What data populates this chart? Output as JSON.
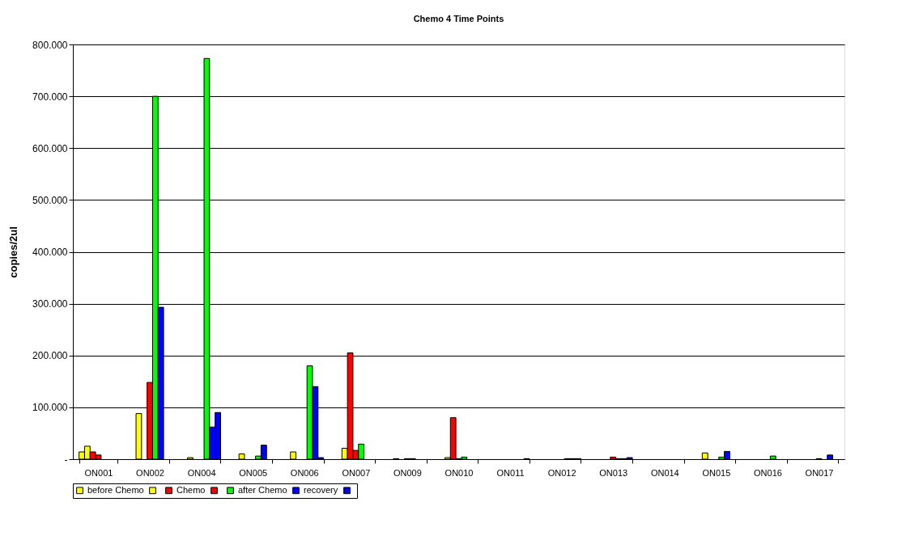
{
  "chart_data": {
    "type": "bar",
    "title": "Chemo 4 Time Points",
    "ylabel": "copies/2ul",
    "categories": [
      "ON001",
      "ON002",
      "ON004",
      "ON005",
      "ON006",
      "ON007",
      "ON009",
      "ON010",
      "ON011",
      "ON012",
      "ON013",
      "ON014",
      "ON015",
      "ON016",
      "ON017"
    ],
    "series": [
      {
        "name": "before Chemo",
        "color": "#ffff00",
        "values": [
          14,
          null,
          null,
          null,
          null,
          null,
          null,
          null,
          null,
          null,
          null,
          null,
          null,
          null,
          null
        ]
      },
      {
        "color": "#ffff00",
        "values": [
          25,
          88,
          3,
          10,
          14,
          21,
          1,
          3,
          null,
          null,
          null,
          null,
          12,
          null,
          null
        ]
      },
      {
        "name": "Chemo",
        "color": "#ff0000",
        "values": [
          14,
          null,
          null,
          null,
          null,
          205,
          null,
          80,
          null,
          null,
          null,
          null,
          null,
          null,
          null
        ]
      },
      {
        "color": "#ff0000",
        "values": [
          8,
          148,
          null,
          null,
          null,
          17,
          1,
          1,
          null,
          null,
          4,
          null,
          null,
          null,
          1
        ]
      },
      {
        "name": "after Chemo",
        "color": "#00ff00",
        "values": [
          null,
          700,
          773,
          6,
          180,
          29,
          1,
          4,
          null,
          1,
          1,
          null,
          4,
          6,
          null
        ]
      },
      {
        "name": "recovery",
        "color": "#0000ff",
        "values": [
          null,
          293,
          62,
          27,
          140,
          null,
          null,
          null,
          null,
          1,
          1,
          null,
          15,
          null,
          8
        ]
      },
      {
        "color": "#0000ff",
        "values": [
          null,
          null,
          90,
          null,
          3,
          null,
          null,
          null,
          1,
          1,
          3,
          null,
          null,
          null,
          null
        ]
      }
    ],
    "ylim": [
      0,
      800
    ],
    "yticks": [
      {
        "value": 0,
        "label": "-"
      },
      {
        "value": 100,
        "label": "100.000"
      },
      {
        "value": 200,
        "label": "200.000"
      },
      {
        "value": 300,
        "label": "300.000"
      },
      {
        "value": 400,
        "label": "400.000"
      },
      {
        "value": 500,
        "label": "500.000"
      },
      {
        "value": 600,
        "label": "600.000"
      },
      {
        "value": 700,
        "label": "700.000"
      },
      {
        "value": 800,
        "label": "800.000"
      }
    ],
    "grid": "y",
    "legend": "bottom"
  }
}
